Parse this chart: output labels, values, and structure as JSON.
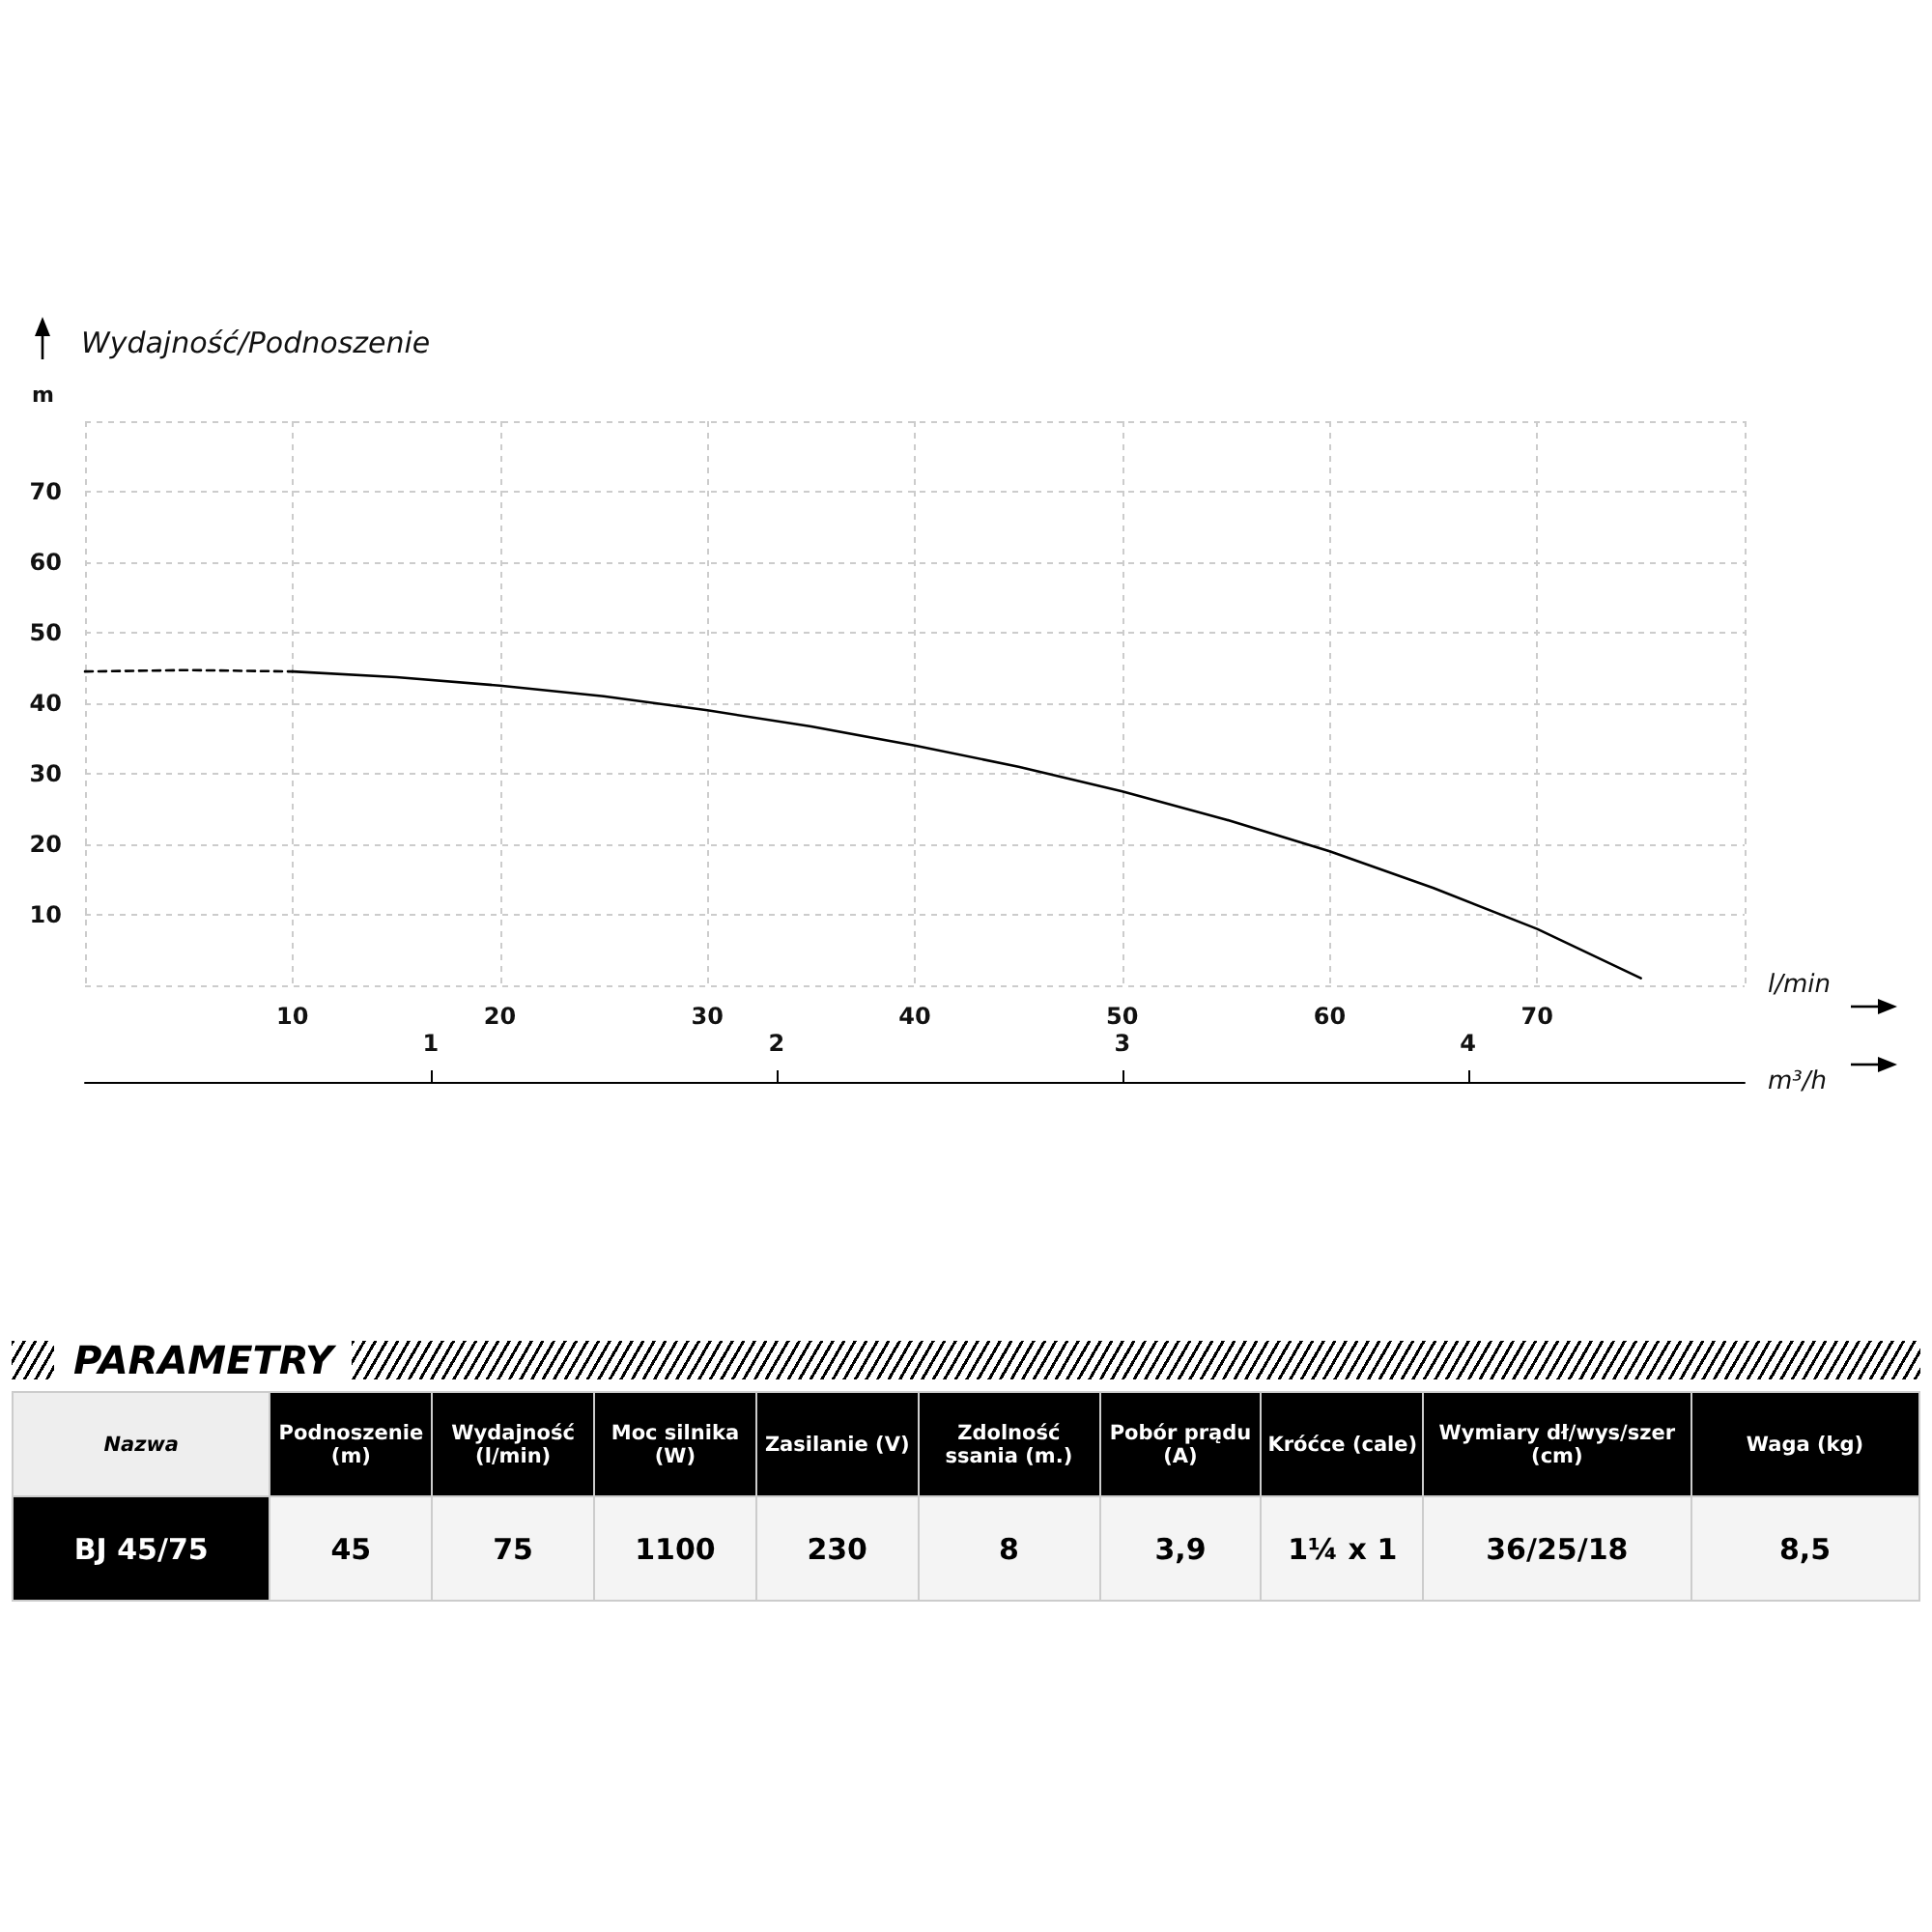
{
  "chart_data": [
    {
      "type": "line",
      "title": "Wydajność/Podnoszenie",
      "ylabel": "m",
      "xlabel": "l/min",
      "x2label": "m³/h",
      "xlim": [
        0,
        80
      ],
      "xticks": [
        10,
        20,
        30,
        40,
        50,
        60,
        70
      ],
      "ylim": [
        0,
        80
      ],
      "yticks": [
        10,
        20,
        30,
        40,
        50,
        60,
        70
      ],
      "x2lim": [
        0,
        4.8
      ],
      "x2ticks": [
        1,
        2,
        3,
        4
      ],
      "grid": true,
      "marker": "none",
      "series": [
        {
          "color": "#000000",
          "line_style": "dashed",
          "x": [
            0,
            5,
            10
          ],
          "values": [
            44.5,
            44.7,
            44.5
          ]
        },
        {
          "color": "#000000",
          "line_style": "solid",
          "x": [
            10,
            15,
            20,
            25,
            30,
            35,
            40,
            45,
            50,
            55,
            60,
            65,
            70,
            75
          ],
          "values": [
            44.5,
            43.7,
            42.5,
            41,
            39,
            36.7,
            34,
            31,
            27.5,
            23.5,
            19,
            13.8,
            8,
            1
          ]
        }
      ]
    },
    {
      "type": "other",
      "title": "PARAMETRY",
      "categories": [
        "Nazwa",
        "Podnoszenie (m)",
        "Wydajność (l/min)",
        "Moc silnika (W)",
        "Zasilanie (V)",
        "Zdolność ssania (m.)",
        "Pobór prądu (A)",
        "Króćce (cale)",
        "Wymiary dł/wys/szer (cm)",
        "Waga (kg)"
      ],
      "annotations": [
        "BJ 45/75",
        "45",
        "75",
        "1100",
        "230",
        "8",
        "3,9",
        "1¼ x 1",
        "36/25/18",
        "8,5"
      ]
    }
  ]
}
